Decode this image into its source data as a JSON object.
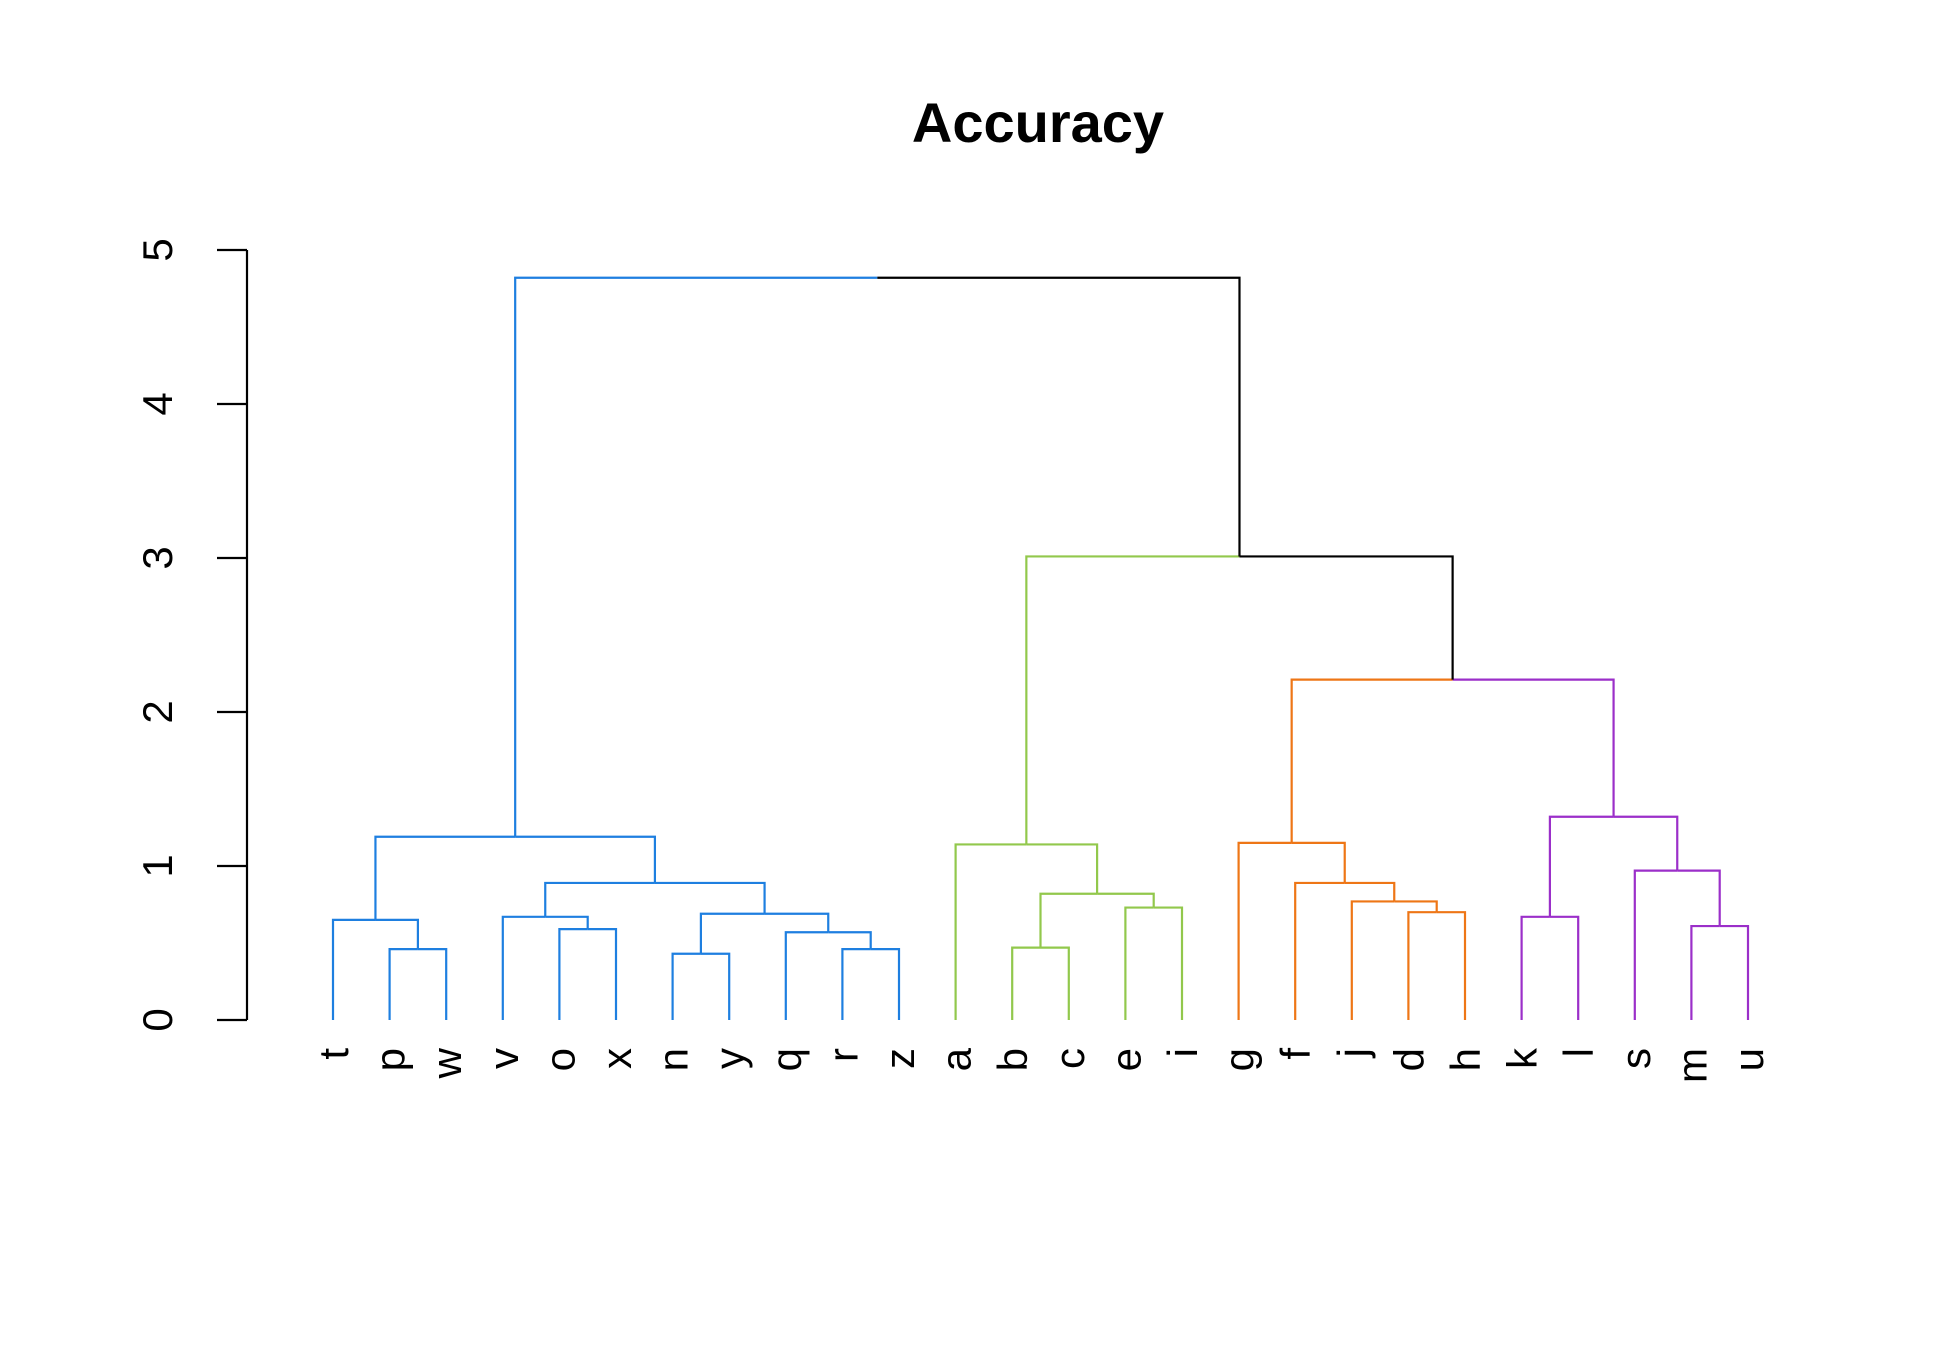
{
  "chart_data": {
    "type": "dendrogram",
    "title": "Accuracy",
    "xlabel": "",
    "ylabel": "",
    "ylim": [
      0,
      5
    ],
    "y_ticks": [
      "0",
      "1",
      "2",
      "3",
      "4",
      "5"
    ],
    "leaves": [
      "t",
      "p",
      "w",
      "v",
      "o",
      "x",
      "n",
      "y",
      "q",
      "r",
      "z",
      "a",
      "b",
      "c",
      "e",
      "i",
      "g",
      "f",
      "j",
      "d",
      "h",
      "k",
      "l",
      "s",
      "m",
      "u"
    ],
    "clusters": [
      {
        "leaves": [
          "t",
          "p",
          "w",
          "v",
          "o",
          "x",
          "n",
          "y",
          "q",
          "r",
          "z"
        ],
        "color": "#1e7fe0"
      },
      {
        "leaves": [
          "a",
          "b",
          "c",
          "e",
          "i"
        ],
        "color": "#92c84c"
      },
      {
        "leaves": [
          "g",
          "f",
          "j",
          "d",
          "h"
        ],
        "color": "#ee7616"
      },
      {
        "leaves": [
          "k",
          "l",
          "s",
          "m",
          "u"
        ],
        "color": "#9b2fc9"
      }
    ],
    "merges": [
      {
        "left": "p",
        "right": "w",
        "height": 0.46
      },
      {
        "left": "t",
        "right": "p+w",
        "height": 0.65
      },
      {
        "left": "o",
        "right": "x",
        "height": 0.59
      },
      {
        "left": "v",
        "right": "o+x",
        "height": 0.67
      },
      {
        "left": "n",
        "right": "y",
        "height": 0.43
      },
      {
        "left": "r",
        "right": "z",
        "height": 0.46
      },
      {
        "left": "q",
        "right": "r+z",
        "height": 0.57
      },
      {
        "left": "n+y",
        "right": "q+r+z",
        "height": 0.69
      },
      {
        "left": "v+o+x",
        "right": "n+y+q+r+z",
        "height": 0.89
      },
      {
        "left": "t+p+w",
        "right": "v+o+x+n+y+q+r+z",
        "height": 1.19
      },
      {
        "left": "b",
        "right": "c",
        "height": 0.47
      },
      {
        "left": "e",
        "right": "i",
        "height": 0.73
      },
      {
        "left": "b+c",
        "right": "e+i",
        "height": 0.82
      },
      {
        "left": "a",
        "right": "b+c+e+i",
        "height": 1.14
      },
      {
        "left": "d",
        "right": "h",
        "height": 0.7
      },
      {
        "left": "j",
        "right": "d+h",
        "height": 0.77
      },
      {
        "left": "f",
        "right": "j+d+h",
        "height": 0.89
      },
      {
        "left": "g",
        "right": "f+j+d+h",
        "height": 1.15
      },
      {
        "left": "k",
        "right": "l",
        "height": 0.67
      },
      {
        "left": "m",
        "right": "u",
        "height": 0.61
      },
      {
        "left": "s",
        "right": "m+u",
        "height": 0.97
      },
      {
        "left": "k+l",
        "right": "s+m+u",
        "height": 1.32
      },
      {
        "left": "g+f+j+d+h",
        "right": "k+l+s+m+u",
        "height": 2.21
      },
      {
        "left": "a+b+c+e+i",
        "right": "g+f+j+d+h+k+l+s+m+u",
        "height": 3.01
      },
      {
        "left": "t+p+w+v+o+x+n+y+q+r+z",
        "right": "a+b+c+e+i+g+f+j+d+h+k+l+s+m+u",
        "height": 4.82
      }
    ],
    "root_color": "#000000"
  }
}
